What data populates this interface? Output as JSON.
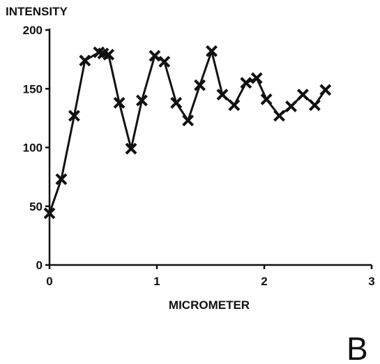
{
  "chart_data": {
    "type": "line",
    "title": "",
    "ylabel": "INTENSITY",
    "xlabel": "MICROMETER",
    "xlim": [
      0,
      3
    ],
    "ylim": [
      0,
      200
    ],
    "x_ticks": [
      "0",
      "1",
      "2",
      "3"
    ],
    "y_ticks": [
      "0",
      "50",
      "100",
      "150",
      "200"
    ],
    "grid": false,
    "marker": "x",
    "series": [
      {
        "x": [
          0.0,
          0.11,
          0.23,
          0.33,
          0.46,
          0.5,
          0.55,
          0.65,
          0.76,
          0.86,
          0.98,
          1.07,
          1.18,
          1.29,
          1.4,
          1.51,
          1.61,
          1.72,
          1.83,
          1.93,
          2.02,
          2.14,
          2.25,
          2.36,
          2.47,
          2.57
        ],
        "y": [
          44,
          73,
          127,
          174,
          181,
          180,
          179,
          138,
          99,
          140,
          178,
          173,
          138,
          123,
          153,
          182,
          145,
          136,
          155,
          159,
          141,
          127,
          135,
          145,
          136,
          149
        ]
      }
    ],
    "color": "#111111"
  },
  "panel_label": "B"
}
